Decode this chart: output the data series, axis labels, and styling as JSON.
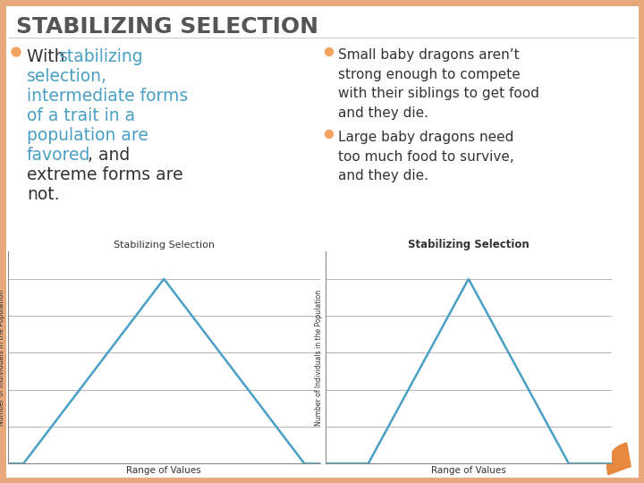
{
  "title": "STABILIZING SELECTION",
  "title_fontsize": 18,
  "title_color": "#555555",
  "title_weight": "bold",
  "background_color": "#ffffff",
  "border_color": "#e8a87c",
  "left_bullet_color": "#f4a460",
  "blue_color": "#4a9fc4",
  "right_bullet1": "Small baby dragons aren’t\nstrong enough to compete\nwith their siblings to get food\nand they die.",
  "right_bullet2": "Large baby dragons need\ntoo much food to survive,\nand they die.",
  "right_bullet_color": "#f4a460",
  "chart_title": "Stabilizing Selection",
  "chart_xlabel": "Range of Values",
  "chart_ylabel": "Number of Individuals in the Population",
  "chart_line_color": "#4a9fc4",
  "orange_accent": "#e8883c"
}
